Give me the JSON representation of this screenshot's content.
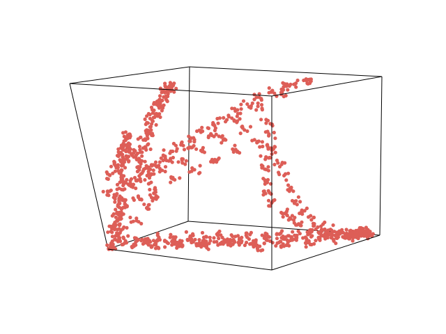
{
  "chart_data": {
    "type": "scatter",
    "projection": "3d",
    "title": "",
    "xlabel": "",
    "ylabel": "",
    "zlabel": "",
    "axes_visible": false,
    "grid": false,
    "legend": "none",
    "box_edges": true,
    "color": "#dd5e57",
    "xlim": [
      0,
      1
    ],
    "ylim": [
      0,
      1
    ],
    "zlim": [
      0,
      1
    ],
    "series": [
      {
        "points": [
          [
            0.02,
            0.02,
            0.02
          ],
          [
            0.04,
            0.03,
            0.06
          ],
          [
            0.06,
            0.03,
            0.1
          ],
          [
            0.05,
            0.05,
            0.14
          ],
          [
            0.08,
            0.04,
            0.18
          ],
          [
            0.07,
            0.06,
            0.22
          ],
          [
            0.09,
            0.05,
            0.27
          ],
          [
            0.1,
            0.07,
            0.32
          ],
          [
            0.11,
            0.06,
            0.37
          ],
          [
            0.12,
            0.08,
            0.42
          ],
          [
            0.13,
            0.07,
            0.47
          ],
          [
            0.14,
            0.09,
            0.52
          ],
          [
            0.15,
            0.08,
            0.56
          ],
          [
            0.15,
            0.1,
            0.6
          ],
          [
            0.16,
            0.09,
            0.63
          ],
          [
            0.17,
            0.1,
            0.66
          ],
          [
            0.18,
            0.11,
            0.69
          ],
          [
            0.16,
            0.12,
            0.61
          ],
          [
            0.14,
            0.1,
            0.55
          ],
          [
            0.12,
            0.11,
            0.5
          ],
          [
            0.1,
            0.12,
            0.4
          ],
          [
            0.08,
            0.1,
            0.3
          ],
          [
            0.06,
            0.09,
            0.2
          ],
          [
            0.18,
            0.14,
            0.58
          ],
          [
            0.2,
            0.13,
            0.48
          ],
          [
            0.22,
            0.12,
            0.52
          ],
          [
            0.24,
            0.15,
            0.62
          ],
          [
            0.26,
            0.16,
            0.7
          ],
          [
            0.28,
            0.17,
            0.76
          ],
          [
            0.3,
            0.18,
            0.82
          ],
          [
            0.32,
            0.2,
            0.88
          ],
          [
            0.33,
            0.22,
            0.92
          ],
          [
            0.34,
            0.23,
            0.95
          ],
          [
            0.35,
            0.24,
            0.97
          ],
          [
            0.31,
            0.21,
            0.9
          ],
          [
            0.29,
            0.19,
            0.84
          ],
          [
            0.27,
            0.18,
            0.79
          ],
          [
            0.25,
            0.17,
            0.72
          ],
          [
            0.23,
            0.16,
            0.66
          ],
          [
            0.21,
            0.15,
            0.6
          ],
          [
            0.19,
            0.14,
            0.54
          ],
          [
            0.3,
            0.22,
            0.86
          ],
          [
            0.36,
            0.25,
            0.98
          ],
          [
            0.35,
            0.26,
            0.99
          ],
          [
            0.34,
            0.24,
            0.96
          ],
          [
            0.14,
            0.18,
            0.42
          ],
          [
            0.18,
            0.2,
            0.46
          ],
          [
            0.22,
            0.22,
            0.5
          ],
          [
            0.26,
            0.25,
            0.54
          ],
          [
            0.3,
            0.28,
            0.58
          ],
          [
            0.34,
            0.31,
            0.62
          ],
          [
            0.38,
            0.34,
            0.66
          ],
          [
            0.42,
            0.38,
            0.7
          ],
          [
            0.46,
            0.41,
            0.74
          ],
          [
            0.5,
            0.44,
            0.78
          ],
          [
            0.54,
            0.48,
            0.82
          ],
          [
            0.58,
            0.52,
            0.86
          ],
          [
            0.62,
            0.56,
            0.9
          ],
          [
            0.66,
            0.6,
            0.93
          ],
          [
            0.7,
            0.64,
            0.96
          ],
          [
            0.74,
            0.68,
            0.98
          ],
          [
            0.78,
            0.72,
            1.0
          ],
          [
            0.2,
            0.24,
            0.44
          ],
          [
            0.28,
            0.3,
            0.52
          ],
          [
            0.36,
            0.36,
            0.6
          ],
          [
            0.44,
            0.42,
            0.68
          ],
          [
            0.52,
            0.5,
            0.76
          ],
          [
            0.6,
            0.58,
            0.84
          ],
          [
            0.68,
            0.66,
            0.92
          ],
          [
            0.76,
            0.74,
            0.99
          ],
          [
            0.1,
            0.2,
            0.36
          ],
          [
            0.16,
            0.24,
            0.4
          ],
          [
            0.24,
            0.28,
            0.46
          ],
          [
            0.32,
            0.34,
            0.52
          ],
          [
            0.4,
            0.4,
            0.58
          ],
          [
            0.48,
            0.46,
            0.64
          ],
          [
            0.56,
            0.52,
            0.7
          ],
          [
            0.64,
            0.58,
            0.74
          ],
          [
            0.12,
            0.22,
            0.3
          ],
          [
            0.2,
            0.26,
            0.34
          ],
          [
            0.28,
            0.32,
            0.4
          ],
          [
            0.36,
            0.38,
            0.46
          ],
          [
            0.44,
            0.44,
            0.52
          ],
          [
            0.52,
            0.5,
            0.58
          ],
          [
            0.6,
            0.56,
            0.62
          ],
          [
            0.64,
            0.6,
            0.66
          ],
          [
            0.62,
            0.62,
            0.6
          ],
          [
            0.6,
            0.64,
            0.52
          ],
          [
            0.58,
            0.66,
            0.44
          ],
          [
            0.57,
            0.68,
            0.36
          ],
          [
            0.56,
            0.7,
            0.28
          ],
          [
            0.58,
            0.72,
            0.22
          ],
          [
            0.62,
            0.74,
            0.16
          ],
          [
            0.66,
            0.76,
            0.12
          ],
          [
            0.7,
            0.78,
            0.08
          ],
          [
            0.74,
            0.8,
            0.05
          ],
          [
            0.78,
            0.82,
            0.03
          ],
          [
            0.82,
            0.84,
            0.02
          ],
          [
            0.86,
            0.86,
            0.02
          ],
          [
            0.9,
            0.88,
            0.02
          ],
          [
            0.94,
            0.9,
            0.03
          ],
          [
            0.96,
            0.92,
            0.04
          ],
          [
            0.62,
            0.66,
            0.56
          ],
          [
            0.64,
            0.68,
            0.48
          ],
          [
            0.66,
            0.7,
            0.4
          ],
          [
            0.68,
            0.72,
            0.32
          ],
          [
            0.7,
            0.74,
            0.24
          ],
          [
            0.72,
            0.76,
            0.18
          ],
          [
            0.76,
            0.78,
            0.12
          ],
          [
            0.8,
            0.8,
            0.08
          ],
          [
            0.84,
            0.82,
            0.06
          ],
          [
            0.88,
            0.84,
            0.04
          ],
          [
            0.92,
            0.86,
            0.03
          ],
          [
            0.95,
            0.88,
            0.03
          ],
          [
            0.97,
            0.9,
            0.04
          ],
          [
            0.05,
            0.08,
            0.02
          ],
          [
            0.1,
            0.12,
            0.02
          ],
          [
            0.15,
            0.15,
            0.03
          ],
          [
            0.2,
            0.18,
            0.02
          ],
          [
            0.25,
            0.22,
            0.03
          ],
          [
            0.3,
            0.26,
            0.02
          ],
          [
            0.35,
            0.3,
            0.03
          ],
          [
            0.4,
            0.34,
            0.02
          ],
          [
            0.45,
            0.38,
            0.03
          ],
          [
            0.5,
            0.42,
            0.02
          ],
          [
            0.55,
            0.46,
            0.03
          ],
          [
            0.6,
            0.5,
            0.02
          ],
          [
            0.65,
            0.54,
            0.03
          ],
          [
            0.7,
            0.58,
            0.02
          ],
          [
            0.75,
            0.62,
            0.03
          ],
          [
            0.8,
            0.66,
            0.02
          ],
          [
            0.85,
            0.7,
            0.03
          ],
          [
            0.9,
            0.74,
            0.02
          ],
          [
            0.95,
            0.78,
            0.03
          ],
          [
            0.98,
            0.82,
            0.04
          ],
          [
            0.08,
            0.3,
            0.02
          ],
          [
            0.14,
            0.34,
            0.03
          ],
          [
            0.2,
            0.4,
            0.02
          ],
          [
            0.26,
            0.46,
            0.03
          ],
          [
            0.32,
            0.52,
            0.02
          ],
          [
            0.38,
            0.56,
            0.03
          ],
          [
            0.44,
            0.6,
            0.02
          ],
          [
            0.5,
            0.64,
            0.03
          ],
          [
            0.56,
            0.68,
            0.02
          ],
          [
            0.62,
            0.72,
            0.03
          ],
          [
            0.68,
            0.76,
            0.02
          ],
          [
            0.74,
            0.8,
            0.03
          ],
          [
            0.8,
            0.84,
            0.02
          ],
          [
            0.86,
            0.86,
            0.03
          ],
          [
            0.92,
            0.88,
            0.02
          ],
          [
            0.96,
            0.9,
            0.02
          ],
          [
            0.98,
            0.92,
            0.03
          ],
          [
            0.97,
            0.94,
            0.02
          ],
          [
            0.99,
            0.9,
            0.02
          ],
          [
            0.94,
            0.92,
            0.03
          ],
          [
            0.16,
            0.05,
            0.06
          ],
          [
            0.24,
            0.1,
            0.04
          ],
          [
            0.36,
            0.16,
            0.05
          ],
          [
            0.48,
            0.22,
            0.04
          ],
          [
            0.6,
            0.28,
            0.05
          ],
          [
            0.72,
            0.34,
            0.04
          ],
          [
            0.84,
            0.4,
            0.05
          ],
          [
            0.92,
            0.5,
            0.04
          ],
          [
            0.1,
            0.02,
            0.08
          ],
          [
            0.22,
            0.06,
            0.06
          ],
          [
            0.34,
            0.12,
            0.07
          ],
          [
            0.46,
            0.18,
            0.06
          ],
          [
            0.58,
            0.24,
            0.07
          ],
          [
            0.7,
            0.3,
            0.06
          ],
          [
            0.82,
            0.36,
            0.07
          ],
          [
            0.06,
            0.12,
            0.12
          ],
          [
            0.12,
            0.16,
            0.16
          ],
          [
            0.18,
            0.18,
            0.24
          ],
          [
            0.22,
            0.2,
            0.3
          ],
          [
            0.08,
            0.14,
            0.26
          ],
          [
            0.04,
            0.06,
            0.34
          ],
          [
            0.06,
            0.08,
            0.44
          ],
          [
            0.09,
            0.1,
            0.5
          ],
          [
            0.03,
            0.04,
            0.12
          ],
          [
            0.01,
            0.01,
            0.01
          ]
        ]
      }
    ]
  }
}
